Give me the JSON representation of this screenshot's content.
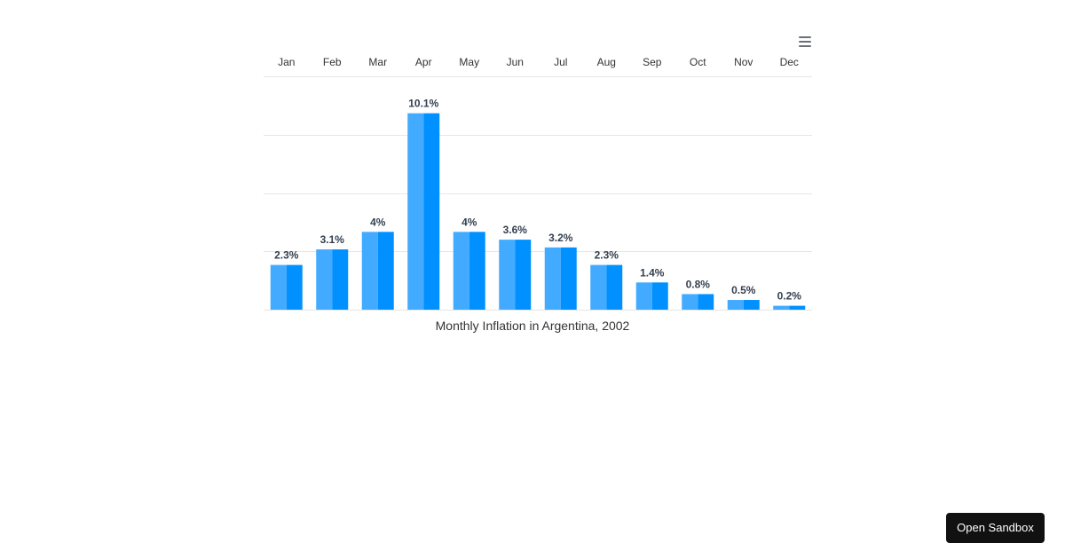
{
  "chart_data": {
    "type": "bar",
    "title": "Monthly Inflation in Argentina, 2002",
    "categories": [
      "Jan",
      "Feb",
      "Mar",
      "Apr",
      "May",
      "Jun",
      "Jul",
      "Aug",
      "Sep",
      "Oct",
      "Nov",
      "Dec"
    ],
    "series": [
      {
        "values": [
          2.3,
          3.1,
          4,
          10.1,
          4,
          3.6,
          3.2,
          2.3,
          1.4,
          0.8,
          0.5,
          0.2
        ]
      }
    ],
    "value_suffix": "%",
    "ylim": [
      0,
      12
    ],
    "y_gridlines": [
      0,
      3,
      6,
      9,
      12
    ],
    "x_axis_position": "top",
    "grid": true,
    "legend": "none",
    "colors": {
      "bar_light": "#42abff",
      "bar_dark": "#0090ff",
      "label": "#333f4f",
      "grid": "#e6e6e6",
      "axis_text": "#333333"
    }
  },
  "toolbar": {
    "menu_icon": "hamburger-menu-icon"
  },
  "sandbox_button": {
    "label": "Open Sandbox"
  }
}
